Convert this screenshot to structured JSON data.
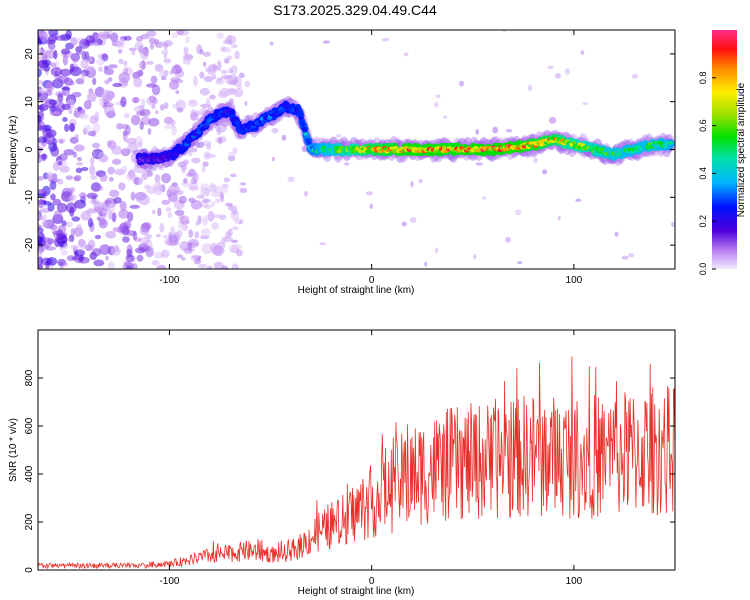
{
  "title": "S173.2025.329.04.49.C44",
  "chart_data": [
    {
      "type": "heatmap",
      "xlabel": "Height of straight line (km)",
      "ylabel": "Frequency (Hz)",
      "xlim": [
        -165,
        150
      ],
      "ylim": [
        -25,
        25
      ],
      "xticks": [
        -100,
        0,
        100
      ],
      "yticks": [
        -20,
        -10,
        0,
        10,
        20
      ],
      "colorbar": {
        "label": "Normalized spectral amplitude",
        "range": [
          0,
          1
        ],
        "ticks": [
          "0.0",
          "0.2",
          "0.4",
          "0.6",
          "0.8"
        ]
      },
      "ridge": [
        {
          "x": -115,
          "y": -2,
          "amp": 0.2
        },
        {
          "x": -105,
          "y": -2,
          "amp": 0.22
        },
        {
          "x": -98,
          "y": -1,
          "amp": 0.25
        },
        {
          "x": -92,
          "y": 1,
          "amp": 0.3
        },
        {
          "x": -85,
          "y": 4,
          "amp": 0.32
        },
        {
          "x": -78,
          "y": 7,
          "amp": 0.3
        },
        {
          "x": -70,
          "y": 8,
          "amp": 0.28
        },
        {
          "x": -65,
          "y": 4,
          "amp": 0.3
        },
        {
          "x": -58,
          "y": 5,
          "amp": 0.32
        },
        {
          "x": -50,
          "y": 7,
          "amp": 0.35
        },
        {
          "x": -42,
          "y": 9,
          "amp": 0.3
        },
        {
          "x": -36,
          "y": 8,
          "amp": 0.35
        },
        {
          "x": -30,
          "y": 0,
          "amp": 0.45
        },
        {
          "x": -20,
          "y": 0,
          "amp": 0.6
        },
        {
          "x": -10,
          "y": 0,
          "amp": 0.75
        },
        {
          "x": 0,
          "y": 0,
          "amp": 0.85
        },
        {
          "x": 10,
          "y": 0,
          "amp": 0.9
        },
        {
          "x": 20,
          "y": 0,
          "amp": 0.95
        },
        {
          "x": 30,
          "y": 0,
          "amp": 0.95
        },
        {
          "x": 40,
          "y": 0,
          "amp": 0.92
        },
        {
          "x": 50,
          "y": 0,
          "amp": 0.95
        },
        {
          "x": 60,
          "y": 0,
          "amp": 0.95
        },
        {
          "x": 70,
          "y": 0.5,
          "amp": 0.97
        },
        {
          "x": 80,
          "y": 1,
          "amp": 0.9
        },
        {
          "x": 90,
          "y": 2,
          "amp": 0.85
        },
        {
          "x": 100,
          "y": 1,
          "amp": 0.75
        },
        {
          "x": 110,
          "y": 0,
          "amp": 0.7
        },
        {
          "x": 120,
          "y": -1,
          "amp": 0.6
        },
        {
          "x": 130,
          "y": 0,
          "amp": 0.55
        },
        {
          "x": 140,
          "y": 1,
          "amp": 0.6
        },
        {
          "x": 148,
          "y": 1,
          "amp": 0.5
        }
      ]
    },
    {
      "type": "line",
      "xlabel": "Height of straight line (km)",
      "ylabel": "SNR (10 * v/v)",
      "xlim": [
        -165,
        150
      ],
      "ylim": [
        0,
        1000
      ],
      "xticks": [
        -100,
        0,
        100
      ],
      "yticks": [
        0,
        200,
        400,
        600,
        800
      ],
      "series": [
        {
          "color": "#e8302a",
          "envelope_x": [
            -165,
            -120,
            -100,
            -80,
            -60,
            -45,
            -35,
            -25,
            -15,
            -5,
            5,
            15,
            25,
            40,
            60,
            80,
            100,
            120,
            140,
            150
          ],
          "envelope_y": [
            20,
            20,
            25,
            60,
            80,
            60,
            100,
            170,
            200,
            260,
            310,
            370,
            410,
            440,
            460,
            480,
            470,
            480,
            500,
            500
          ]
        }
      ]
    }
  ]
}
